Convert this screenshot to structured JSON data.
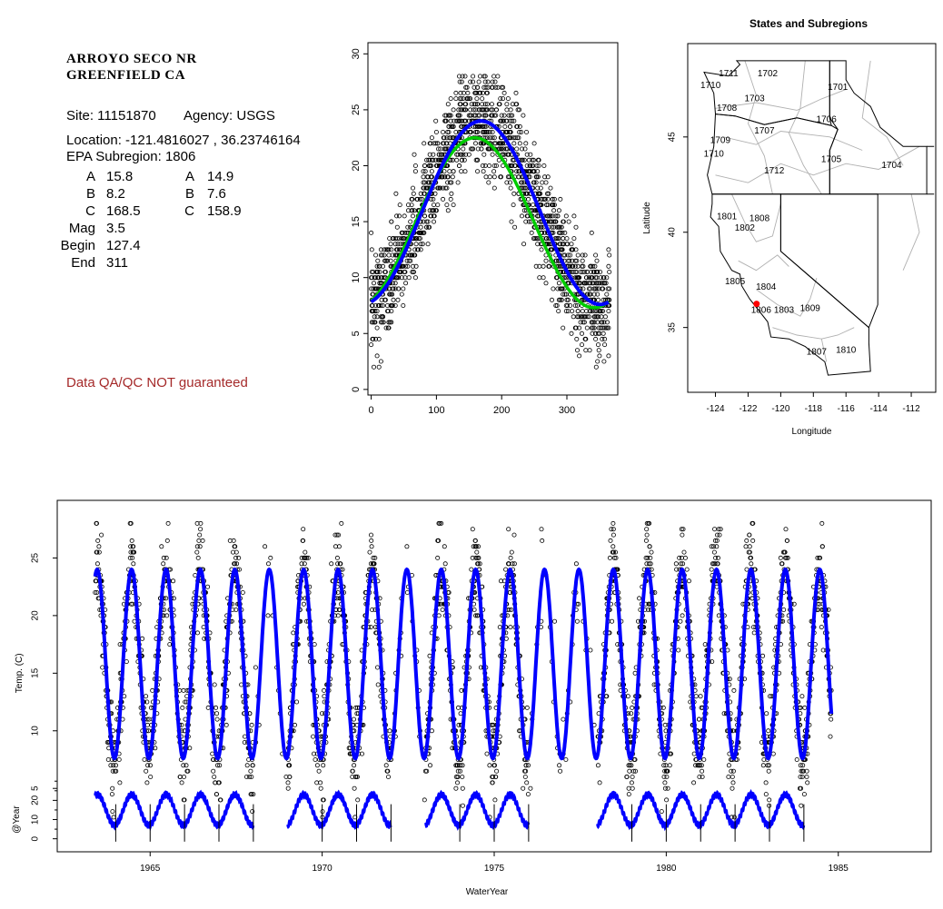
{
  "header": {
    "station_line1": "ARROYO SECO NR",
    "station_line2": "GREENFIELD CA",
    "site_label": "Site: 11151870",
    "agency_label": "Agency: USGS",
    "location_label": "Location: -121.4816027 , 36.23746164",
    "subregion_label": "EPA Subregion: 1806",
    "disclaimer": "Data QA/QC NOT guaranteed",
    "disclaimer_color": "#a52a2a"
  },
  "stats": [
    {
      "label": "A",
      "value1": "15.8",
      "label2": "A",
      "value2": "14.9"
    },
    {
      "label": "B",
      "value1": "8.2",
      "label2": "B",
      "value2": "7.6"
    },
    {
      "label": "C",
      "value1": "168.5",
      "label2": "C",
      "value2": "158.9"
    },
    {
      "label": "Mag",
      "value1": "3.5",
      "label2": "",
      "value2": ""
    },
    {
      "label": "Begin",
      "value1": "127.4",
      "label2": "",
      "value2": ""
    },
    {
      "label": "End",
      "value1": "311",
      "label2": "",
      "value2": ""
    }
  ],
  "chart_data": [
    {
      "type": "scatter",
      "title": "",
      "xlabel": "",
      "ylabel": "",
      "xlim": [
        -5,
        378
      ],
      "ylim": [
        -0.5,
        31
      ],
      "x_ticks": [
        0,
        100,
        200,
        300
      ],
      "y_ticks": [
        0,
        5,
        10,
        15,
        20,
        25,
        30
      ],
      "series": [
        {
          "color": "#000000",
          "style": "open-circles"
        },
        {
          "color": "#00cc00",
          "style": "line",
          "params": {
            "A": 14.9,
            "B": 7.6,
            "C": 158.9
          }
        },
        {
          "color": "#0000ff",
          "style": "line",
          "params": {
            "A": 15.8,
            "B": 8.2,
            "C": 168.5
          }
        }
      ]
    },
    {
      "type": "map",
      "title": "States and Subregions",
      "xlabel": "Longitude",
      "ylabel": "Latitude",
      "xlim": [
        -125.7,
        -110.5
      ],
      "ylim": [
        31.6,
        49.9
      ],
      "x_ticks": [
        -124,
        -122,
        -120,
        -118,
        -116,
        -114,
        -112
      ],
      "y_ticks": [
        35,
        40,
        45
      ],
      "regions": [
        {
          "label": "1702",
          "lon": -120.8,
          "lat": 48.3
        },
        {
          "label": "1701",
          "lon": -116.5,
          "lat": 47.6
        },
        {
          "label": "1711",
          "lon": -123.2,
          "lat": 48.3
        },
        {
          "label": "1710",
          "lon": -124.3,
          "lat": 47.7
        },
        {
          "label": "1703",
          "lon": -121.6,
          "lat": 47.0
        },
        {
          "label": "1708",
          "lon": -123.3,
          "lat": 46.5
        },
        {
          "label": "1706",
          "lon": -117.2,
          "lat": 45.9
        },
        {
          "label": "1707",
          "lon": -121.0,
          "lat": 45.3
        },
        {
          "label": "1709",
          "lon": -123.7,
          "lat": 44.8
        },
        {
          "label": "1710",
          "lon": -124.1,
          "lat": 44.1
        },
        {
          "label": "1705",
          "lon": -116.9,
          "lat": 43.8
        },
        {
          "label": "1704",
          "lon": -113.2,
          "lat": 43.5
        },
        {
          "label": "1712",
          "lon": -120.4,
          "lat": 43.2
        },
        {
          "label": "1801",
          "lon": -123.3,
          "lat": 40.8
        },
        {
          "label": "1808",
          "lon": -121.3,
          "lat": 40.7
        },
        {
          "label": "1802",
          "lon": -122.2,
          "lat": 40.2
        },
        {
          "label": "1805",
          "lon": -122.8,
          "lat": 37.4
        },
        {
          "label": "1804",
          "lon": -120.9,
          "lat": 37.1
        },
        {
          "label": "1806",
          "lon": -121.2,
          "lat": 35.9
        },
        {
          "label": "1803",
          "lon": -119.8,
          "lat": 35.9
        },
        {
          "label": "1809",
          "lon": -118.2,
          "lat": 36.0
        },
        {
          "label": "1810",
          "lon": -116.0,
          "lat": 33.8
        },
        {
          "label": "1807",
          "lon": -117.8,
          "lat": 33.7
        }
      ],
      "site": {
        "lon": -121.48,
        "lat": 36.24,
        "color": "#ff0000"
      }
    },
    {
      "type": "line",
      "title": "",
      "xlabel": "WaterYear",
      "ylabel": "Temp. (C)",
      "xlim": [
        1962.3,
        1987.7
      ],
      "ylim": [
        -0.5,
        30
      ],
      "x_ticks": [
        1965,
        1970,
        1975,
        1980,
        1985
      ],
      "y_ticks": [
        5,
        10,
        15,
        20,
        25
      ],
      "fit": {
        "A": 15.8,
        "B": 8.2,
        "C": 168.5,
        "start": 1963.4,
        "end": 1984.8,
        "color": "#0000ff"
      },
      "observed_years": [
        1963,
        1964,
        1965,
        1966,
        1967,
        1969,
        1970,
        1971,
        1973,
        1974,
        1975,
        1978,
        1979,
        1980,
        1981,
        1982,
        1983,
        1984
      ]
    },
    {
      "type": "line",
      "title": "",
      "xlabel": "",
      "ylabel": "@Year",
      "ylim": [
        -3,
        32
      ],
      "y_ticks": [
        0,
        10,
        20
      ],
      "segments": [
        [
          1963.4,
          1968.0
        ],
        [
          1969.0,
          1972.0
        ],
        [
          1973.0,
          1976.0
        ],
        [
          1978.0,
          1984.0
        ]
      ],
      "year_marks": [
        1964,
        1965,
        1966,
        1967,
        1968,
        1970,
        1971,
        1972,
        1974,
        1975,
        1976,
        1979,
        1980,
        1981,
        1982,
        1983,
        1984
      ],
      "color": "#0000ff"
    }
  ]
}
